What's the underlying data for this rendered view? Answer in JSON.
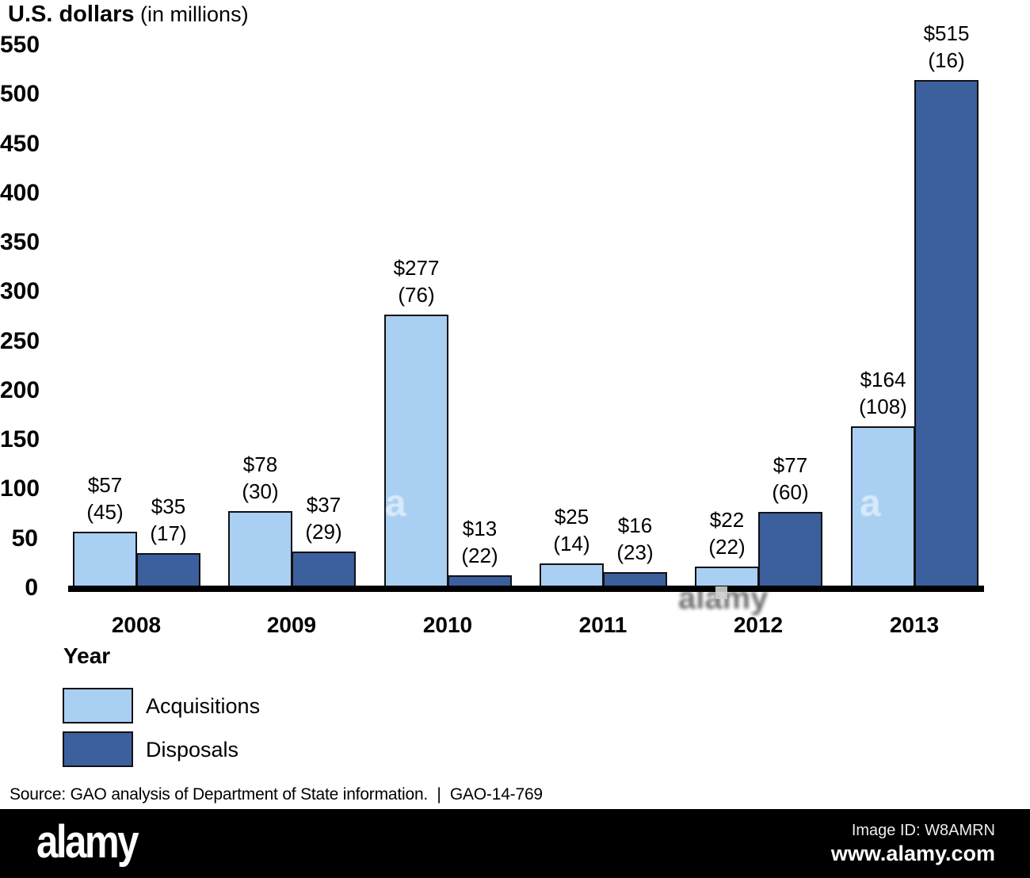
{
  "title": {
    "main": "U.S. dollars",
    "sub": " (in millions)"
  },
  "chart_data": {
    "type": "bar",
    "title": "U.S. dollars (in millions)",
    "xlabel": "Year",
    "ylabel": "U.S. dollars (in millions)",
    "categories": [
      "2008",
      "2009",
      "2010",
      "2011",
      "2012",
      "2013"
    ],
    "series": [
      {
        "name": "Acquisitions",
        "color": "#a9cff2",
        "values": [
          57,
          78,
          277,
          25,
          22,
          164
        ],
        "counts": [
          45,
          30,
          76,
          14,
          22,
          108
        ]
      },
      {
        "name": "Disposals",
        "color": "#3c5f9e",
        "values": [
          35,
          37,
          13,
          16,
          77,
          515
        ],
        "counts": [
          17,
          29,
          22,
          23,
          60,
          16
        ]
      }
    ],
    "bar_label_format": "$VALUE over (COUNT)",
    "ylim": [
      0,
      550
    ],
    "yticks": [
      0,
      50,
      100,
      150,
      200,
      250,
      300,
      350,
      400,
      450,
      500,
      550
    ],
    "grid": false,
    "legend_position": "bottom-left"
  },
  "x_axis_title": "Year",
  "legend": {
    "items": [
      {
        "label": "Acquisitions",
        "color": "#a9cff2"
      },
      {
        "label": "Disposals",
        "color": "#3c5f9e"
      }
    ]
  },
  "source": "Source: GAO analysis of Department of State information.  |  GAO-14-769",
  "alamy_bar": {
    "logo": "alamy",
    "image_id": "Image ID: W8AMRN",
    "url": "www.alamy.com"
  },
  "watermark_letter": "a"
}
